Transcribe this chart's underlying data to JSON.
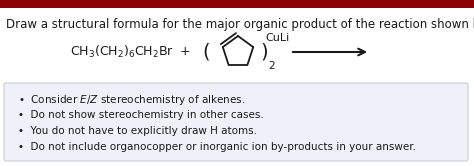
{
  "title": "Draw a structural formula for the major organic product of the reaction shown below.",
  "title_fontsize": 8.5,
  "title_color": "#1a1a1a",
  "background_color": "#ffffff",
  "top_bar_color": "#8B0000",
  "reactant_label": "CH$_3$(CH$_2$)$_6$CH$_2$Br  +",
  "reactant_fontsize": 9.0,
  "culi_label": "CuLi",
  "subscript_2": "2",
  "bullet_points": [
    "Consider $E$/$Z$ stereochemistry of alkenes.",
    "Do not show stereochemistry in other cases.",
    "You do not have to explicitly draw H atoms.",
    "Do not include organocopper or inorganic ion by-products in your answer."
  ],
  "bullet_fontsize": 7.5,
  "bullet_box_facecolor": "#eef2f8",
  "bullet_box_edgecolor": "#c8ccd8"
}
